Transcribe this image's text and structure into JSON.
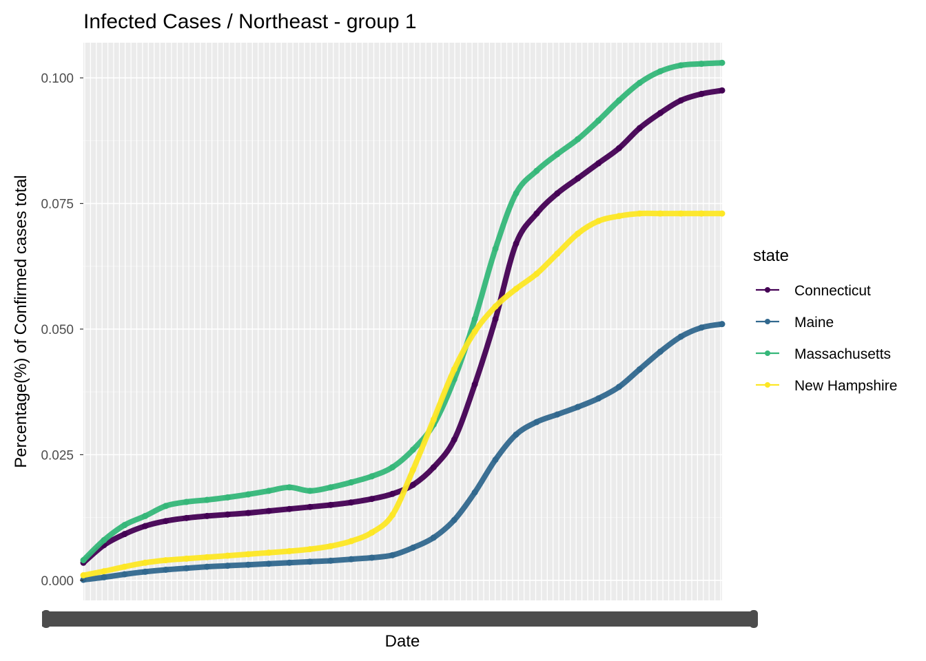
{
  "chart_data": {
    "type": "line",
    "title": "Infected Cases / Northeast - group 1",
    "xlabel": "Date",
    "ylabel": "Percentage(%) of Confirmed cases total",
    "ylim": [
      -0.004,
      0.107
    ],
    "y_ticks": [
      0.0,
      0.025,
      0.05,
      0.075,
      0.1
    ],
    "y_tick_labels": [
      "0.000",
      "0.025",
      "0.050",
      "0.075",
      "0.100"
    ],
    "grid": true,
    "legend": {
      "title": "state",
      "position": "right"
    },
    "x": [
      0,
      30,
      60,
      90,
      120,
      150,
      180,
      210,
      240,
      270,
      300,
      330,
      360,
      390,
      420,
      450,
      480,
      510,
      540,
      570,
      600,
      630,
      660,
      690,
      720,
      750,
      780,
      810,
      840,
      870,
      900,
      930
    ],
    "series": [
      {
        "name": "Connecticut",
        "color": "#440154",
        "values": [
          0.0035,
          0.007,
          0.0092,
          0.0108,
          0.0118,
          0.0124,
          0.0128,
          0.0131,
          0.0134,
          0.0138,
          0.0142,
          0.0146,
          0.015,
          0.0155,
          0.0162,
          0.0172,
          0.019,
          0.0225,
          0.028,
          0.039,
          0.052,
          0.067,
          0.073,
          0.077,
          0.08,
          0.083,
          0.086,
          0.09,
          0.093,
          0.0955,
          0.0968,
          0.0975
        ]
      },
      {
        "name": "Maine",
        "color": "#31688e",
        "values": [
          0.0001,
          0.0006,
          0.0012,
          0.0017,
          0.0021,
          0.0024,
          0.0027,
          0.0029,
          0.0031,
          0.0033,
          0.0035,
          0.0037,
          0.0039,
          0.0042,
          0.0045,
          0.005,
          0.0065,
          0.0085,
          0.012,
          0.0175,
          0.024,
          0.029,
          0.0315,
          0.033,
          0.0345,
          0.0362,
          0.0385,
          0.042,
          0.0455,
          0.0485,
          0.0503,
          0.051
        ]
      },
      {
        "name": "Massachusetts",
        "color": "#35b779",
        "values": [
          0.004,
          0.008,
          0.011,
          0.0128,
          0.0148,
          0.0156,
          0.016,
          0.0165,
          0.0171,
          0.0178,
          0.0185,
          0.0178,
          0.0185,
          0.0195,
          0.0207,
          0.0225,
          0.026,
          0.031,
          0.04,
          0.052,
          0.066,
          0.077,
          0.0815,
          0.0848,
          0.0878,
          0.0915,
          0.0955,
          0.099,
          0.1013,
          0.1025,
          0.1028,
          0.103
        ]
      },
      {
        "name": "New Hampshire",
        "color": "#fde725",
        "values": [
          0.001,
          0.0018,
          0.0027,
          0.0035,
          0.004,
          0.0043,
          0.0046,
          0.0049,
          0.0052,
          0.0055,
          0.0058,
          0.0062,
          0.0068,
          0.0078,
          0.0095,
          0.013,
          0.022,
          0.032,
          0.042,
          0.0495,
          0.0545,
          0.058,
          0.061,
          0.065,
          0.069,
          0.0715,
          0.0725,
          0.073,
          0.073,
          0.073,
          0.073,
          0.073
        ]
      }
    ]
  }
}
